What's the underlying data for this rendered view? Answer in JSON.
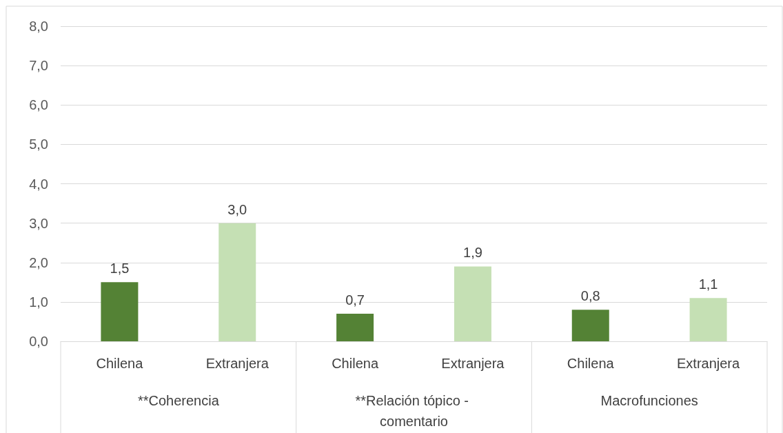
{
  "chart_data": {
    "type": "bar",
    "categories": [
      "Chilena",
      "Extranjera",
      "Chilena",
      "Extranjera",
      "Chilena",
      "Extranjera"
    ],
    "values": [
      1.5,
      3.0,
      0.7,
      1.9,
      0.8,
      1.1
    ],
    "colors": [
      "#548235",
      "#c5e0b4",
      "#548235",
      "#c5e0b4",
      "#548235",
      "#c5e0b4"
    ],
    "value_labels": [
      "1,5",
      "3,0",
      "0,7",
      "1,9",
      "0,8",
      "1,1"
    ],
    "annotations": [
      "**Coherencia",
      "**Relación tópico - comentario",
      "Macrofunciones"
    ],
    "ylim": [
      0,
      8
    ],
    "yticks": [
      {
        "value": 0,
        "label": "0,0"
      },
      {
        "value": 1,
        "label": "1,0"
      },
      {
        "value": 2,
        "label": "2,0"
      },
      {
        "value": 3,
        "label": "3,0"
      },
      {
        "value": 4,
        "label": "4,0"
      },
      {
        "value": 5,
        "label": "5,0"
      },
      {
        "value": 6,
        "label": "6,0"
      },
      {
        "value": 7,
        "label": "7,0"
      },
      {
        "value": 8,
        "label": "8,0"
      }
    ],
    "grid": "y"
  }
}
